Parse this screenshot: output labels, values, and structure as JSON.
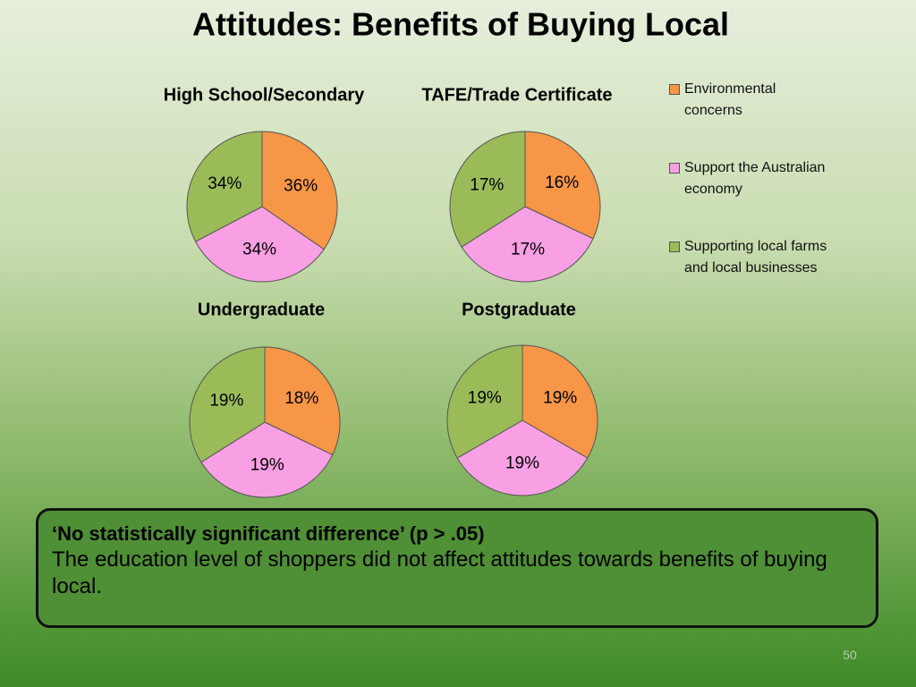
{
  "title": "Attitudes: Benefits of Buying Local",
  "legend": {
    "items": [
      {
        "name": "Environmental concerns",
        "color": "#f79646"
      },
      {
        "name": "Support the Australian economy",
        "color": "#f9a0e4"
      },
      {
        "name": "Supporting local farms and local businesses",
        "color": "#9bbb59"
      }
    ]
  },
  "chart_data": [
    {
      "type": "pie",
      "title": "High School/Secondary",
      "values": [
        36,
        34,
        34
      ],
      "value_labels": [
        "36%",
        "34%",
        "34%"
      ]
    },
    {
      "type": "pie",
      "title": "TAFE/Trade Certificate",
      "values": [
        16,
        17,
        17
      ],
      "value_labels": [
        "16%",
        "17%",
        "17%"
      ]
    },
    {
      "type": "pie",
      "title": "Undergraduate",
      "values": [
        18,
        19,
        19
      ],
      "value_labels": [
        "18%",
        "19%",
        "19%"
      ]
    },
    {
      "type": "pie",
      "title": "Postgraduate",
      "values": [
        19,
        19,
        19
      ],
      "value_labels": [
        "19%",
        "19%",
        "19%"
      ]
    }
  ],
  "note": {
    "heading": "‘No statistically significant difference’  (p > .05)",
    "body": "The education level of shoppers did not affect attitudes towards benefits of buying local."
  },
  "page_number": "50"
}
